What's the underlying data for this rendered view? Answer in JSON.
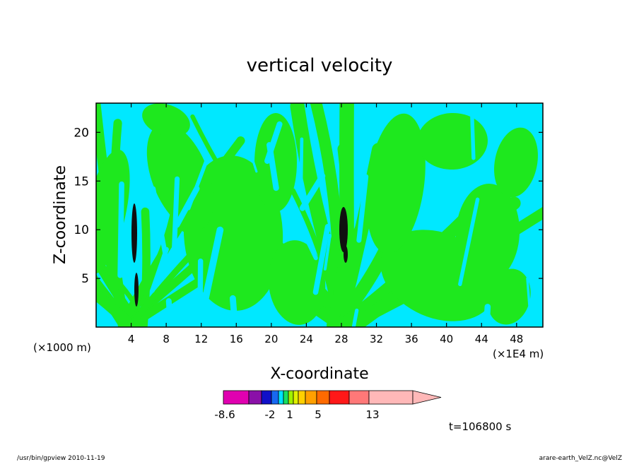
{
  "chart_data": {
    "type": "heatmap",
    "title": "vertical velocity",
    "xlabel": "X-coordinate",
    "ylabel": "Z-coordinate",
    "x_unit_left": "(×1000 m)",
    "x_unit_right": "(×1E4 m)",
    "xlim": [
      0,
      51
    ],
    "ylim": [
      0,
      23
    ],
    "xticks": [
      4,
      8,
      12,
      16,
      20,
      24,
      28,
      32,
      36,
      40,
      44,
      48
    ],
    "yticks": [
      5,
      10,
      15,
      20
    ],
    "xtick_labels": [
      "4",
      "8",
      "12",
      "16",
      "20",
      "24",
      "28",
      "32",
      "36",
      "40",
      "44",
      "48"
    ],
    "ytick_labels": [
      "5",
      "10",
      "15",
      "20"
    ],
    "colorbar": {
      "colors": [
        "#e000b0",
        "#8a10a8",
        "#1010c8",
        "#1868f0",
        "#00e0ff",
        "#18e060",
        "#a0f000",
        "#e0f000",
        "#ffd000",
        "#ffa000",
        "#ff6a00",
        "#ff1818",
        "#ff7878",
        "#ffb8b8"
      ],
      "tick_labels": [
        "-8.6",
        "-2",
        "1",
        "5",
        "13"
      ]
    },
    "time_label": "t=106800 s",
    "footer_left": "/usr/bin/gpview   2010-11-19",
    "footer_right": "arare-earth_VelZ.nc@VelZ"
  }
}
